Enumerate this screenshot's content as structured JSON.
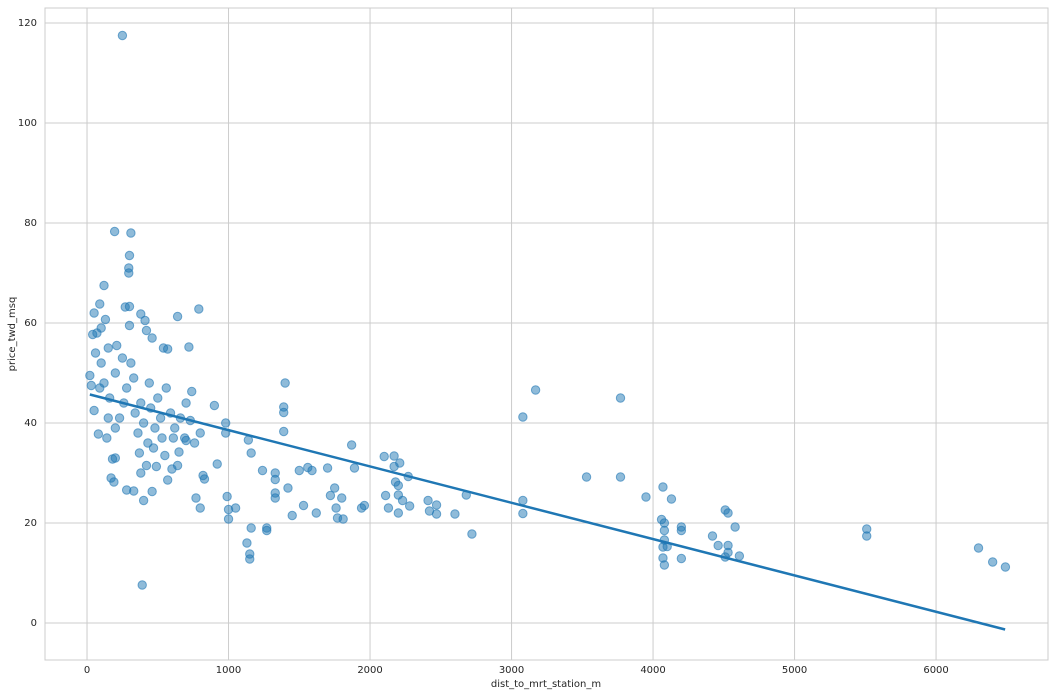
{
  "chart_data": {
    "type": "scatter",
    "x_label": "dist_to_mrt_station_m",
    "y_label": "price_twd_msq",
    "xlim": [
      -297,
      6791
    ],
    "ylim": [
      -7.4,
      123
    ],
    "xticks": [
      0,
      1000,
      2000,
      3000,
      4000,
      5000,
      6000
    ],
    "yticks": [
      0,
      20,
      40,
      60,
      80,
      100,
      120
    ],
    "grid": true,
    "color": "#1f77b4",
    "x": [
      250,
      390,
      195,
      310,
      300,
      295,
      295,
      120,
      90,
      270,
      300,
      790,
      640,
      50,
      380,
      300,
      410,
      70,
      40,
      100,
      130,
      150,
      210,
      540,
      570,
      720,
      460,
      420,
      20,
      30,
      50,
      80,
      140,
      180,
      200,
      170,
      190,
      280,
      330,
      400,
      460,
      380,
      420,
      490,
      600,
      640,
      550,
      650,
      570,
      700,
      760,
      800,
      730,
      740,
      900,
      920,
      820,
      830,
      800,
      770,
      980,
      980,
      990,
      1000,
      1000,
      1050,
      1140,
      1160,
      1130,
      1150,
      1150,
      1160,
      1270,
      1270,
      1240,
      1400,
      1390,
      1390,
      1390,
      1330,
      1330,
      1330,
      1330,
      1420,
      1450,
      1500,
      1530,
      1560,
      1590,
      1620,
      1700,
      1720,
      1750,
      1760,
      1770,
      1800,
      1810,
      1870,
      1890,
      1940,
      1960,
      2100,
      2110,
      2130,
      2170,
      2170,
      2180,
      2200,
      2200,
      2200,
      2210,
      2230,
      2270,
      2280,
      2410,
      2420,
      2470,
      2470,
      2600,
      2680,
      2720,
      3080,
      3080,
      3080,
      3170,
      3530,
      3770,
      3770,
      3950,
      4070,
      4060,
      4080,
      4080,
      4080,
      4070,
      4070,
      4080,
      4100,
      4130,
      4200,
      4200,
      4200,
      4420,
      4460,
      4510,
      4530,
      4530,
      4530,
      4510,
      4580,
      4610,
      5510,
      5510,
      6300,
      6400,
      6490,
      100,
      120,
      160,
      200,
      230,
      260,
      280,
      310,
      340,
      360,
      380,
      400,
      430,
      450,
      480,
      500,
      520,
      560,
      590,
      620,
      660,
      690,
      90,
      150,
      250,
      330,
      370,
      440,
      470,
      530,
      610,
      700,
      60,
      200
    ],
    "y": [
      117.5,
      7.6,
      78.3,
      78,
      73.5,
      71,
      70,
      67.5,
      63.8,
      63.2,
      63.3,
      62.8,
      61.3,
      62,
      61.8,
      59.5,
      60.5,
      58,
      57.7,
      59,
      60.7,
      55,
      55.5,
      55,
      54.8,
      55.2,
      57,
      58.5,
      49.5,
      47.5,
      42.5,
      37.8,
      37,
      32.8,
      33,
      29,
      28.2,
      26.6,
      26.4,
      24.5,
      26.3,
      30,
      31.5,
      31.3,
      30.8,
      31.5,
      33.5,
      34.2,
      28.6,
      36.5,
      36,
      38,
      40.5,
      46.3,
      43.5,
      31.8,
      29.5,
      28.8,
      23,
      25,
      38,
      40,
      25.3,
      22.7,
      20.8,
      23,
      36.6,
      34,
      16,
      13.8,
      12.8,
      19,
      19,
      18.5,
      30.5,
      48,
      43.2,
      42.1,
      38.3,
      30,
      28.7,
      26,
      25,
      27,
      21.5,
      30.5,
      23.5,
      31.1,
      30.5,
      22,
      31,
      25.5,
      27,
      23,
      21,
      25,
      20.8,
      35.6,
      31,
      23,
      23.5,
      33.3,
      25.5,
      23,
      33.4,
      31.3,
      28.2,
      27.5,
      25.6,
      22,
      32,
      24.5,
      29.3,
      23.4,
      24.5,
      22.4,
      21.8,
      23.6,
      21.8,
      25.6,
      17.8,
      41.2,
      24.5,
      21.9,
      46.6,
      29.2,
      45,
      29.2,
      25.2,
      27.2,
      20.7,
      20,
      18.5,
      16.6,
      15.2,
      13,
      11.6,
      15.3,
      24.8,
      19.2,
      18.5,
      12.9,
      17.4,
      15.5,
      22.6,
      22,
      15.5,
      14.1,
      13.2,
      19.2,
      13.4,
      18.8,
      17.4,
      15,
      12.2,
      11.2,
      52,
      48,
      45,
      50,
      41,
      44,
      47,
      52,
      42,
      38,
      44,
      40,
      36,
      43,
      39,
      45,
      41,
      47,
      42,
      39,
      41,
      37,
      47,
      41,
      53,
      49,
      34,
      48,
      35,
      37,
      37,
      44,
      54,
      39
    ],
    "fit": {
      "x": [
        20,
        6488
      ],
      "y": [
        45.7,
        -1.3
      ]
    }
  }
}
